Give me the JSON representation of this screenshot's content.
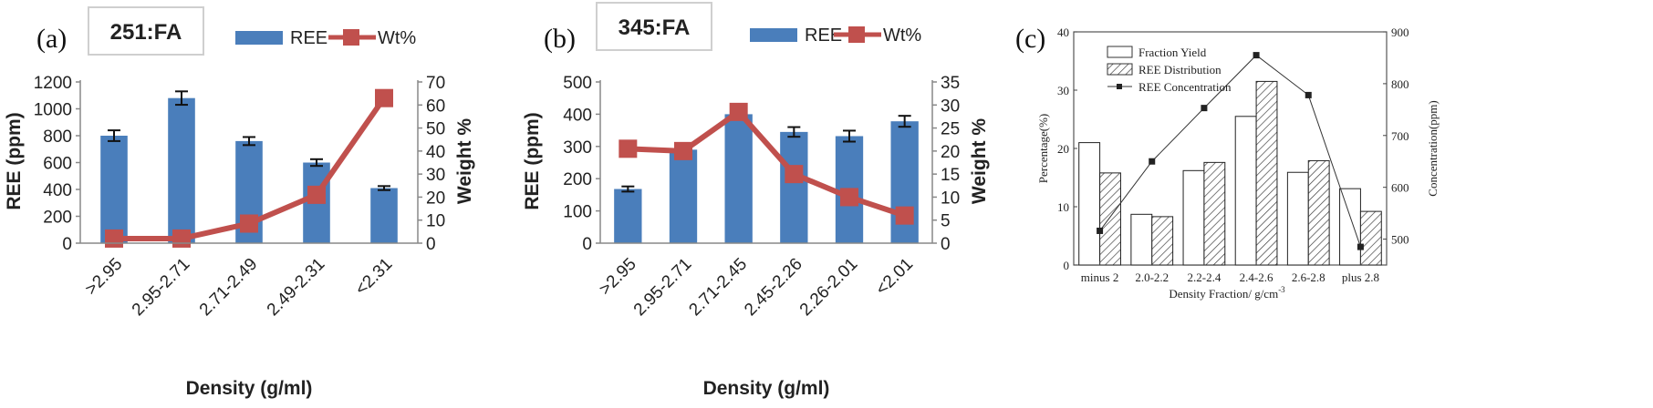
{
  "chart_data": [
    {
      "type": "bar",
      "panel_label": "(a)",
      "box_label": "251:FA",
      "categories": [
        ">2.95",
        "2.95-2.71",
        "2.71-2.49",
        "2.49-2.31",
        "<2.31"
      ],
      "xlabel": "Density (g/ml)",
      "ylabel": "REE (ppm)",
      "y2label": "Weight %",
      "ylim": [
        0,
        1200
      ],
      "y_ticks": [
        0,
        200,
        400,
        600,
        800,
        1000,
        1200
      ],
      "y2lim": [
        0,
        70
      ],
      "y2_ticks": [
        0,
        10,
        20,
        30,
        40,
        50,
        60,
        70
      ],
      "legend_placement": "top",
      "series": [
        {
          "name": "REE",
          "kind": "bar",
          "axis": "left",
          "color": "#4a7ebb",
          "values": [
            800,
            1080,
            760,
            600,
            410
          ],
          "errors": [
            40,
            50,
            30,
            25,
            15
          ]
        },
        {
          "name": "Wt%",
          "kind": "line",
          "axis": "right",
          "color": "#c0504d",
          "values": [
            2,
            2,
            8.5,
            21,
            63
          ]
        }
      ]
    },
    {
      "type": "bar",
      "panel_label": "(b)",
      "box_label": "345:FA",
      "categories": [
        ">2.95",
        "2.95-2.71",
        "2.71-2.45",
        "2.45-2.26",
        "2.26-2.01",
        "<2.01"
      ],
      "xlabel": "Density (g/ml)",
      "ylabel": "REE (ppm)",
      "y2label": "Weight %",
      "ylim": [
        0,
        500
      ],
      "y_ticks": [
        0,
        100,
        200,
        300,
        400,
        500
      ],
      "y2lim": [
        0,
        35
      ],
      "y2_ticks": [
        0,
        5,
        10,
        15,
        20,
        25,
        30,
        35
      ],
      "legend_placement": "top",
      "series": [
        {
          "name": "REE",
          "kind": "bar",
          "axis": "left",
          "color": "#4a7ebb",
          "values": [
            168,
            290,
            400,
            345,
            332,
            378
          ],
          "errors": [
            8,
            0,
            0,
            15,
            17,
            17
          ]
        },
        {
          "name": "Wt%",
          "kind": "line",
          "axis": "right",
          "color": "#c0504d",
          "values": [
            20.5,
            20,
            28.5,
            15,
            10,
            6
          ]
        }
      ]
    },
    {
      "type": "bar",
      "panel_label": "(c)",
      "categories": [
        "minus 2",
        "2.0-2.2",
        "2.2-2.4",
        "2.4-2.6",
        "2.6-2.8",
        "plus 2.8"
      ],
      "xlabel": "Density Fraction/ g/cm",
      "xlabel_superscript": "-3",
      "ylabel": "Percentage(%)",
      "y2label": "Concentration(ppm)",
      "ylim": [
        0,
        40
      ],
      "y_ticks": [
        0,
        10,
        20,
        30,
        40
      ],
      "y2lim": [
        450,
        900
      ],
      "y2_ticks": [
        500,
        600,
        700,
        800,
        900
      ],
      "legend_placement": "top-left",
      "series": [
        {
          "name": "Fraction Yield",
          "kind": "bar",
          "axis": "left",
          "pattern": "open",
          "values": [
            21,
            8.7,
            16.2,
            25.5,
            15.9,
            13.1
          ]
        },
        {
          "name": "REE Distribution",
          "kind": "bar",
          "axis": "left",
          "pattern": "hatch",
          "values": [
            15.8,
            8.3,
            17.6,
            31.5,
            17.9,
            9.2
          ]
        },
        {
          "name": "REE Concentration",
          "kind": "line",
          "axis": "right",
          "color": "#333333",
          "values": [
            516,
            650,
            753,
            855,
            778,
            485
          ]
        }
      ]
    }
  ]
}
